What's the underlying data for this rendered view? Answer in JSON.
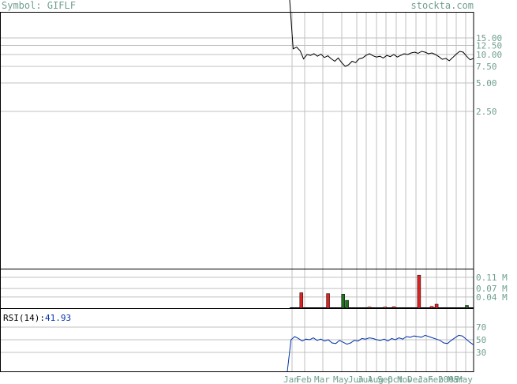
{
  "header": {
    "symbol_label": "Symbol: GIFLF",
    "brand": "stockta.com"
  },
  "colors": {
    "grid": "#c0c0c0",
    "label": "#6f9f8f",
    "price": "#000000",
    "rsi": "#0033aa",
    "vol_up": "#207020",
    "vol_down": "#dd2222"
  },
  "chart_data": [
    {
      "type": "line",
      "name": "price",
      "y_scale": "log",
      "ytick_labels": [
        "15.00",
        "12.50",
        "10.00",
        "7.50",
        "5.00",
        "2.50"
      ],
      "ytick_values": [
        15,
        12.5,
        10,
        7.5,
        5,
        2.5
      ],
      "x_labels": [
        "Jan",
        "Feb",
        "Mar",
        "May",
        "Jun",
        "Jul",
        "Aug",
        "Sep",
        "Oct",
        "Nov",
        "Dec",
        "Jan",
        "Feb",
        "2005",
        "Mar",
        "May"
      ],
      "values": [
        40,
        11.5,
        12,
        11,
        9,
        10,
        9.8,
        10.2,
        9.6,
        10.1,
        9.3,
        9.7,
        9,
        8.5,
        9.2,
        8.2,
        7.5,
        7.8,
        8.5,
        8.2,
        9,
        9.2,
        9.8,
        10.2,
        9.7,
        9.4,
        9.6,
        9.2,
        9.8,
        9.5,
        10,
        9.4,
        9.8,
        10.2,
        10,
        10.4,
        10.6,
        10.3,
        10.8,
        10.6,
        10.2,
        10.4,
        10,
        9.5,
        8.9,
        9.1,
        8.6,
        9.3,
        10.1,
        10.8,
        10.6,
        9.6,
        8.8,
        9.1
      ]
    },
    {
      "type": "bar",
      "name": "volume",
      "ytick_labels": [
        "0.11 M",
        "0.07 M",
        "0.04 M"
      ],
      "ytick_values": [
        0.11,
        0.07,
        0.04
      ],
      "bars": [
        {
          "pos": 0.055,
          "value": 0.055,
          "color": "down"
        },
        {
          "pos": 0.2,
          "value": 0.052,
          "color": "down"
        },
        {
          "pos": 0.282,
          "value": 0.05,
          "color": "up"
        },
        {
          "pos": 0.303,
          "value": 0.028,
          "color": "up"
        },
        {
          "pos": 0.425,
          "value": 0.004,
          "color": "down"
        },
        {
          "pos": 0.51,
          "value": 0.004,
          "color": "down"
        },
        {
          "pos": 0.558,
          "value": 0.005,
          "color": "down"
        },
        {
          "pos": 0.695,
          "value": 0.118,
          "color": "down"
        },
        {
          "pos": 0.764,
          "value": 0.006,
          "color": "down"
        },
        {
          "pos": 0.79,
          "value": 0.014,
          "color": "down"
        },
        {
          "pos": 0.955,
          "value": 0.01,
          "color": "up"
        }
      ]
    },
    {
      "type": "line",
      "name": "RSI(14)",
      "label": "RSI(14):",
      "current_value": "41.93",
      "ytick_labels": [
        "70",
        "50",
        "30"
      ],
      "ytick_values": [
        70,
        50,
        30
      ],
      "ylim": [
        0,
        100
      ],
      "values": [
        0,
        50,
        55,
        52,
        48,
        51,
        50,
        53,
        49,
        51,
        48,
        50,
        45,
        44,
        49,
        46,
        43,
        45,
        49,
        48,
        52,
        51,
        53,
        52,
        50,
        49,
        51,
        48,
        52,
        50,
        53,
        51,
        55,
        54,
        56,
        55,
        54,
        57,
        55,
        53,
        51,
        49,
        45,
        44,
        49,
        53,
        57,
        56,
        51,
        46,
        42
      ]
    }
  ]
}
